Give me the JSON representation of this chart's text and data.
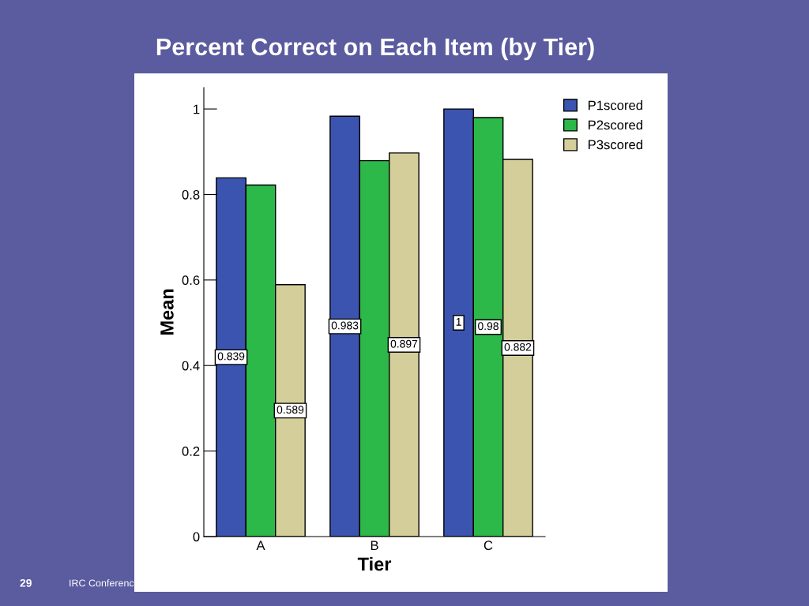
{
  "chart_data": {
    "type": "bar",
    "title": "Percent Correct on Each Item (by Tier)",
    "xlabel": "Tier",
    "ylabel": "Mean",
    "categories": [
      "A",
      "B",
      "C"
    ],
    "series": [
      {
        "name": "P1scored",
        "color": "#3a54b0",
        "values": [
          0.839,
          0.983,
          1
        ],
        "value_labels": [
          "0.839",
          "0.983",
          "1"
        ]
      },
      {
        "name": "P2scored",
        "color": "#2db84a",
        "values": [
          0.822,
          0.879,
          0.98
        ],
        "value_labels": [
          null,
          null,
          "0.98"
        ]
      },
      {
        "name": "P3scored",
        "color": "#d4cf9a",
        "values": [
          0.589,
          0.897,
          0.882
        ],
        "value_labels": [
          "0.589",
          "0.897",
          "0.882"
        ]
      }
    ],
    "ylim": [
      0,
      1.05
    ],
    "yticks": [
      0,
      0.2,
      0.4,
      0.6,
      0.8,
      1
    ],
    "grid": false,
    "legend": "top right",
    "annotations": [
      "29",
      "IRC Conferenc"
    ]
  }
}
